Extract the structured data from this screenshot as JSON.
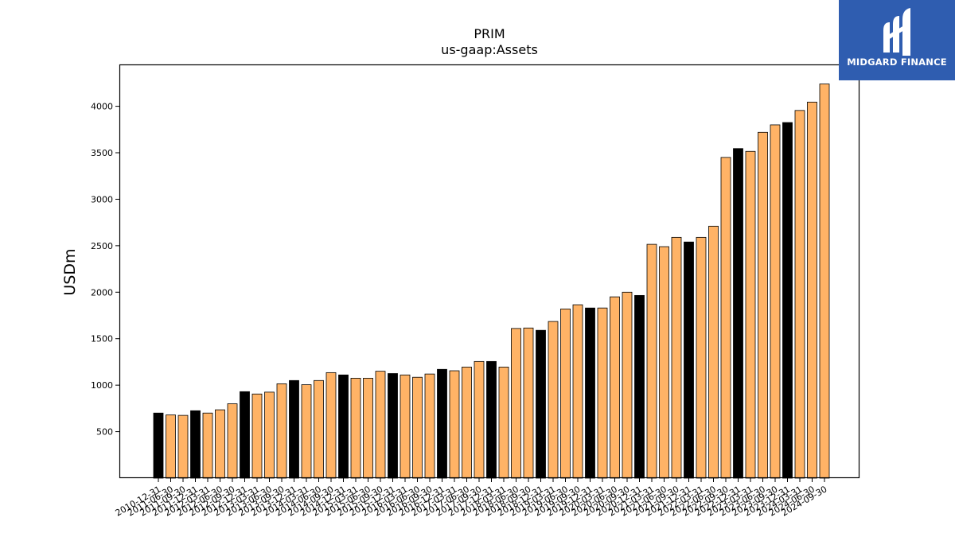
{
  "brand": {
    "name": "MIDGARD FINANCE",
    "colors": {
      "logo_bg": "#2f5db0",
      "logo_text": "#ffffff"
    }
  },
  "chart_data": {
    "type": "bar",
    "title": "PRIM",
    "subtitle": "us-gaap:Assets",
    "ylabel": "USDm",
    "xlabel": "",
    "ylim": [
      0,
      4450
    ],
    "yticks": [
      500,
      1000,
      1500,
      2000,
      2500,
      3000,
      3500,
      4000
    ],
    "grid": false,
    "colors": {
      "annual": "#000000",
      "quarterly": "#ffb366",
      "edge": "#000000"
    },
    "categories": [
      "2010-12-31",
      "2011-06-30",
      "2011-09-30",
      "2011-12-31",
      "2012-03-31",
      "2012-06-30",
      "2012-09-30",
      "2012-12-31",
      "2013-03-31",
      "2013-06-30",
      "2013-09-30",
      "2013-12-31",
      "2014-03-31",
      "2014-06-30",
      "2014-09-30",
      "2014-12-31",
      "2015-03-31",
      "2015-06-30",
      "2015-09-30",
      "2015-12-31",
      "2016-03-31",
      "2016-06-30",
      "2016-09-30",
      "2016-12-31",
      "2017-03-31",
      "2017-06-30",
      "2017-09-30",
      "2017-12-31",
      "2018-03-31",
      "2018-06-30",
      "2018-09-30",
      "2018-12-31",
      "2019-03-31",
      "2019-06-30",
      "2019-09-30",
      "2019-12-31",
      "2020-03-31",
      "2020-06-30",
      "2020-09-30",
      "2020-12-31",
      "2021-03-31",
      "2021-06-30",
      "2021-09-30",
      "2021-12-31",
      "2022-03-31",
      "2022-06-30",
      "2022-09-30",
      "2022-12-31",
      "2023-03-31",
      "2023-06-30",
      "2023-09-30",
      "2023-12-31",
      "2024-03-31",
      "2024-06-30",
      "2024-09-30"
    ],
    "values": [
      700,
      680,
      675,
      725,
      700,
      735,
      800,
      930,
      905,
      925,
      1015,
      1050,
      1005,
      1050,
      1135,
      1110,
      1075,
      1075,
      1150,
      1125,
      1110,
      1085,
      1120,
      1170,
      1155,
      1195,
      1255,
      1255,
      1195,
      1610,
      1615,
      1590,
      1685,
      1820,
      1865,
      1830,
      1830,
      1950,
      2000,
      1965,
      2515,
      2490,
      2590,
      2540,
      2590,
      2710,
      3450,
      3545,
      3515,
      3720,
      3800,
      3825,
      3955,
      4045,
      4240
    ],
    "annual_flags": [
      1,
      0,
      0,
      1,
      0,
      0,
      0,
      1,
      0,
      0,
      0,
      1,
      0,
      0,
      0,
      1,
      0,
      0,
      0,
      1,
      0,
      0,
      0,
      1,
      0,
      0,
      0,
      1,
      0,
      0,
      0,
      1,
      0,
      0,
      0,
      1,
      0,
      0,
      0,
      1,
      0,
      0,
      0,
      1,
      0,
      0,
      0,
      1,
      0,
      0,
      0,
      1,
      0,
      0,
      0
    ]
  }
}
